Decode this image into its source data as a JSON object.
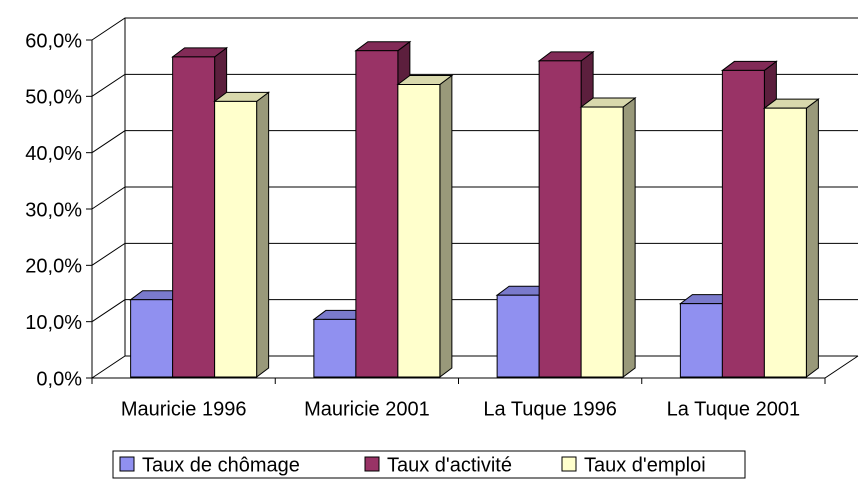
{
  "chart_data": {
    "type": "bar3d",
    "categories": [
      "Mauricie 1996",
      "Mauricie 2001",
      "La Tuque 1996",
      "La Tuque 2001"
    ],
    "series": [
      {
        "name": "Taux de chômage",
        "color": "#9090f0",
        "values": [
          13.9,
          10.4,
          14.7,
          13.2
        ]
      },
      {
        "name": "Taux d'activité",
        "color": "#993366",
        "values": [
          57.0,
          58.1,
          56.3,
          54.6
        ]
      },
      {
        "name": "Taux d'emploi",
        "color": "#ffffcc",
        "values": [
          49.1,
          52.1,
          48.1,
          47.9
        ]
      }
    ],
    "ylim": [
      0,
      60
    ],
    "yticks": [
      {
        "value": 0,
        "label": "0,0%"
      },
      {
        "value": 10,
        "label": "10,0%"
      },
      {
        "value": 20,
        "label": "20,0%"
      },
      {
        "value": 30,
        "label": "30,0%"
      },
      {
        "value": 40,
        "label": "40,0%"
      },
      {
        "value": 50,
        "label": "50,0%"
      },
      {
        "value": 60,
        "label": "60,0%"
      }
    ],
    "grid": true,
    "legend": "bottom"
  }
}
